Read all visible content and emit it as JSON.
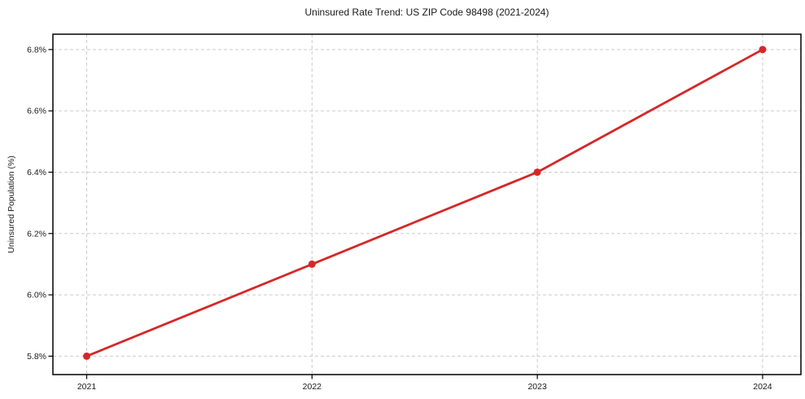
{
  "figure": {
    "title": "Uninsured Rate Trend: US ZIP Code 98498 (2021-2024)"
  },
  "chart_data": {
    "type": "line",
    "title": "Uninsured Rate Trend: US ZIP Code 98498 (2021-2024)",
    "xlabel": "",
    "ylabel": "Uninsured Population (%)",
    "x": [
      2021,
      2022,
      2023,
      2024
    ],
    "x_tick_labels": [
      "2021",
      "2022",
      "2023",
      "2024"
    ],
    "values": [
      5.8,
      6.1,
      6.4,
      6.8
    ],
    "y_ticks": [
      5.8,
      6.0,
      6.2,
      6.4,
      6.6,
      6.8
    ],
    "y_tick_labels": [
      "5.8%",
      "6.0%",
      "6.2%",
      "6.4%",
      "6.6%",
      "6.8%"
    ],
    "xlim": [
      2020.85,
      2024.17
    ],
    "ylim": [
      5.74,
      6.85
    ],
    "grid": true,
    "legend": "none",
    "line_color": "#d62728",
    "marker": "circle",
    "marker_radius": 4.5,
    "line_width": 2.8,
    "grid_color": "#cccccc",
    "axis_color": "#000000",
    "background": "#ffffff"
  }
}
